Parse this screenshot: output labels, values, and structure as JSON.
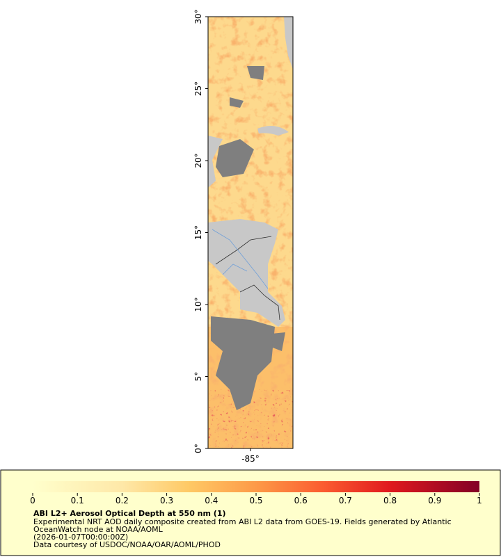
{
  "map": {
    "lat_range": [
      0,
      30
    ],
    "lat_ticks": [
      {
        "value": 30,
        "label": "30°"
      },
      {
        "value": 25,
        "label": "25°"
      },
      {
        "value": 20,
        "label": "20°"
      },
      {
        "value": 15,
        "label": "15°"
      },
      {
        "value": 10,
        "label": "10°"
      },
      {
        "value": 5,
        "label": "5°"
      },
      {
        "value": 0,
        "label": "0°"
      }
    ],
    "lon_ticks": [
      {
        "value": -85,
        "label": "-85°"
      }
    ]
  },
  "colorbar": {
    "range": [
      0,
      1
    ],
    "ticks": [
      0,
      0.1,
      0.2,
      0.3,
      0.4,
      0.5,
      0.6,
      0.7,
      0.8,
      0.9,
      1
    ]
  },
  "caption": {
    "title": "ABI L2+ Aerosol Optical Depth at 550 nm (1)",
    "lines": [
      "Experimental NRT AOD daily composite created from ABI L2 data from GOES-19. Fields generated by Atlantic",
      "OceanWatch node at NOAA/AOML",
      "(2026-01-07T00:00:00Z)",
      "Data courtesy of USDOC/NOAA/OAR/AOML/PHOD"
    ]
  }
}
